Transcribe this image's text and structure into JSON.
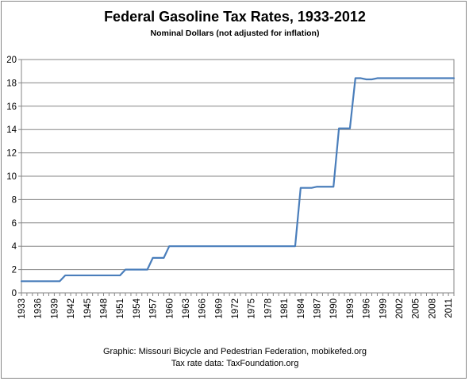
{
  "chart_data": {
    "type": "line",
    "title": "Federal Gasoline Tax Rates, 1933-2012",
    "subtitle": "Nominal Dollars (not adjusted for inflation)",
    "xlabel": "",
    "ylabel": "",
    "xlim": [
      1933,
      2012
    ],
    "ylim": [
      0,
      20
    ],
    "y_ticks": [
      0,
      2,
      4,
      6,
      8,
      10,
      12,
      14,
      16,
      18,
      20
    ],
    "x_ticks": [
      1933,
      1936,
      1939,
      1942,
      1945,
      1948,
      1951,
      1954,
      1957,
      1960,
      1963,
      1966,
      1969,
      1972,
      1975,
      1978,
      1981,
      1984,
      1987,
      1990,
      1993,
      1996,
      1999,
      2002,
      2005,
      2008,
      2011
    ],
    "grid": "horizontal",
    "legend": "none",
    "line_color": "#4a7ebb",
    "series": [
      {
        "x": [
          1933,
          1934,
          1935,
          1936,
          1937,
          1938,
          1939,
          1940,
          1941,
          1942,
          1943,
          1944,
          1945,
          1946,
          1947,
          1948,
          1949,
          1950,
          1951,
          1952,
          1953,
          1954,
          1955,
          1956,
          1957,
          1958,
          1959,
          1960,
          1961,
          1962,
          1963,
          1964,
          1965,
          1966,
          1967,
          1968,
          1969,
          1970,
          1971,
          1972,
          1973,
          1974,
          1975,
          1976,
          1977,
          1978,
          1979,
          1980,
          1981,
          1982,
          1983,
          1984,
          1985,
          1986,
          1987,
          1988,
          1989,
          1990,
          1991,
          1992,
          1993,
          1994,
          1995,
          1996,
          1997,
          1998,
          1999,
          2000,
          2001,
          2002,
          2003,
          2004,
          2005,
          2006,
          2007,
          2008,
          2009,
          2010,
          2011,
          2012
        ],
        "values": [
          1,
          1,
          1,
          1,
          1,
          1,
          1,
          1,
          1.5,
          1.5,
          1.5,
          1.5,
          1.5,
          1.5,
          1.5,
          1.5,
          1.5,
          1.5,
          1.5,
          2,
          2,
          2,
          2,
          2,
          3,
          3,
          3,
          4,
          4,
          4,
          4,
          4,
          4,
          4,
          4,
          4,
          4,
          4,
          4,
          4,
          4,
          4,
          4,
          4,
          4,
          4,
          4,
          4,
          4,
          4,
          4,
          9,
          9,
          9,
          9.1,
          9.1,
          9.1,
          9.1,
          14.1,
          14.1,
          14.1,
          18.4,
          18.4,
          18.3,
          18.3,
          18.4,
          18.4,
          18.4,
          18.4,
          18.4,
          18.4,
          18.4,
          18.4,
          18.4,
          18.4,
          18.4,
          18.4,
          18.4,
          18.4,
          18.4
        ]
      }
    ],
    "annotations": [
      "Graphic: Missouri Bicycle and Pedestrian Federation, mobikefed.org",
      "Tax rate data: TaxFoundation.org"
    ]
  }
}
